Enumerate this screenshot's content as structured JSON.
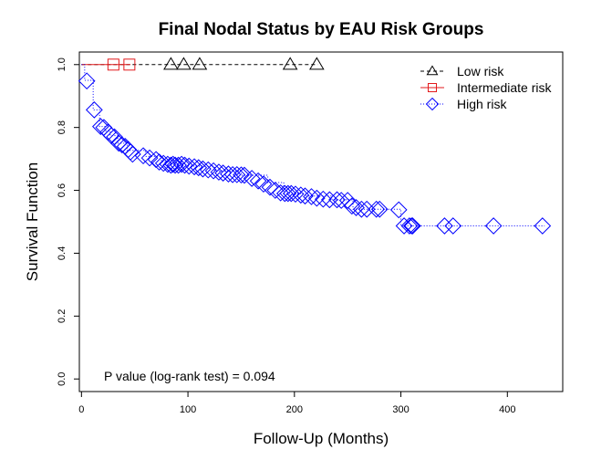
{
  "chart_data": {
    "type": "line",
    "title": "Final Nodal Status by EAU Risk Groups",
    "xlabel": "Follow-Up (Months)",
    "ylabel": "Survival Function",
    "xlim": [
      -2,
      452
    ],
    "ylim": [
      -0.04,
      1.04
    ],
    "xticks": [
      0,
      100,
      200,
      300,
      400
    ],
    "yticks": [
      0.0,
      0.2,
      0.4,
      0.6,
      0.8,
      1.0
    ],
    "ytick_labels": [
      "0.0",
      "0.2",
      "0.4",
      "0.6",
      "0.8",
      "1.0"
    ],
    "annotation": "P value (log-rank test) =  0.094",
    "legend_position": "top-right",
    "series": [
      {
        "name": "Low risk",
        "color": "#000000",
        "line_style": "dashed",
        "marker": "triangle",
        "steps": [
          [
            0,
            1.0
          ],
          [
            222,
            1.0
          ]
        ],
        "censored": [
          [
            84,
            1.0
          ],
          [
            96,
            1.0
          ],
          [
            111,
            1.0
          ],
          [
            196,
            1.0
          ],
          [
            221,
            1.0
          ]
        ]
      },
      {
        "name": "Intermediate risk",
        "color": "#e31a1c",
        "line_style": "solid",
        "marker": "square",
        "steps": [
          [
            0,
            1.0
          ],
          [
            46,
            1.0
          ]
        ],
        "censored": [
          [
            30,
            1.0
          ],
          [
            45,
            1.0
          ]
        ]
      },
      {
        "name": "High risk",
        "color": "#0000ff",
        "line_style": "dotted",
        "marker": "diamond",
        "steps": [
          [
            0,
            1.0
          ],
          [
            3,
            0.95
          ],
          [
            11,
            0.856
          ],
          [
            17,
            0.803
          ],
          [
            22,
            0.789
          ],
          [
            27,
            0.774
          ],
          [
            34,
            0.75
          ],
          [
            43,
            0.727
          ],
          [
            60,
            0.708
          ],
          [
            75,
            0.69
          ],
          [
            95,
            0.677
          ],
          [
            125,
            0.662
          ],
          [
            150,
            0.648
          ],
          [
            175,
            0.625
          ],
          [
            190,
            0.59
          ],
          [
            210,
            0.582
          ],
          [
            235,
            0.57
          ],
          [
            255,
            0.54
          ],
          [
            300,
            0.487
          ],
          [
            435,
            0.487
          ]
        ],
        "censored": [
          [
            5,
            0.948
          ],
          [
            12,
            0.856
          ],
          [
            18,
            0.803
          ],
          [
            21,
            0.8
          ],
          [
            25,
            0.785
          ],
          [
            28,
            0.774
          ],
          [
            31,
            0.77
          ],
          [
            35,
            0.75
          ],
          [
            38,
            0.745
          ],
          [
            41,
            0.74
          ],
          [
            44,
            0.73
          ],
          [
            46,
            0.722
          ],
          [
            48,
            0.715
          ],
          [
            58,
            0.71
          ],
          [
            64,
            0.703
          ],
          [
            70,
            0.698
          ],
          [
            73,
            0.69
          ],
          [
            77,
            0.686
          ],
          [
            81,
            0.683
          ],
          [
            84,
            0.68
          ],
          [
            86,
            0.683
          ],
          [
            88,
            0.68
          ],
          [
            91,
            0.68
          ],
          [
            94,
            0.683
          ],
          [
            97,
            0.68
          ],
          [
            101,
            0.677
          ],
          [
            106,
            0.675
          ],
          [
            110,
            0.672
          ],
          [
            114,
            0.668
          ],
          [
            119,
            0.665
          ],
          [
            124,
            0.662
          ],
          [
            129,
            0.658
          ],
          [
            133,
            0.655
          ],
          [
            138,
            0.652
          ],
          [
            142,
            0.65
          ],
          [
            146,
            0.65
          ],
          [
            150,
            0.649
          ],
          [
            153,
            0.648
          ],
          [
            160,
            0.638
          ],
          [
            166,
            0.63
          ],
          [
            171,
            0.62
          ],
          [
            177,
            0.61
          ],
          [
            182,
            0.6
          ],
          [
            187,
            0.592
          ],
          [
            191,
            0.59
          ],
          [
            194,
            0.59
          ],
          [
            197,
            0.59
          ],
          [
            201,
            0.588
          ],
          [
            206,
            0.585
          ],
          [
            210,
            0.582
          ],
          [
            216,
            0.58
          ],
          [
            221,
            0.575
          ],
          [
            227,
            0.572
          ],
          [
            233,
            0.57
          ],
          [
            240,
            0.57
          ],
          [
            244,
            0.568
          ],
          [
            250,
            0.568
          ],
          [
            254,
            0.55
          ],
          [
            258,
            0.545
          ],
          [
            263,
            0.54
          ],
          [
            268,
            0.54
          ],
          [
            277,
            0.54
          ],
          [
            280,
            0.54
          ],
          [
            298,
            0.538
          ],
          [
            303,
            0.487
          ],
          [
            308,
            0.487
          ],
          [
            310,
            0.487
          ],
          [
            311,
            0.487
          ],
          [
            341,
            0.487
          ],
          [
            349,
            0.487
          ],
          [
            387,
            0.487
          ],
          [
            433,
            0.487
          ]
        ]
      }
    ]
  }
}
